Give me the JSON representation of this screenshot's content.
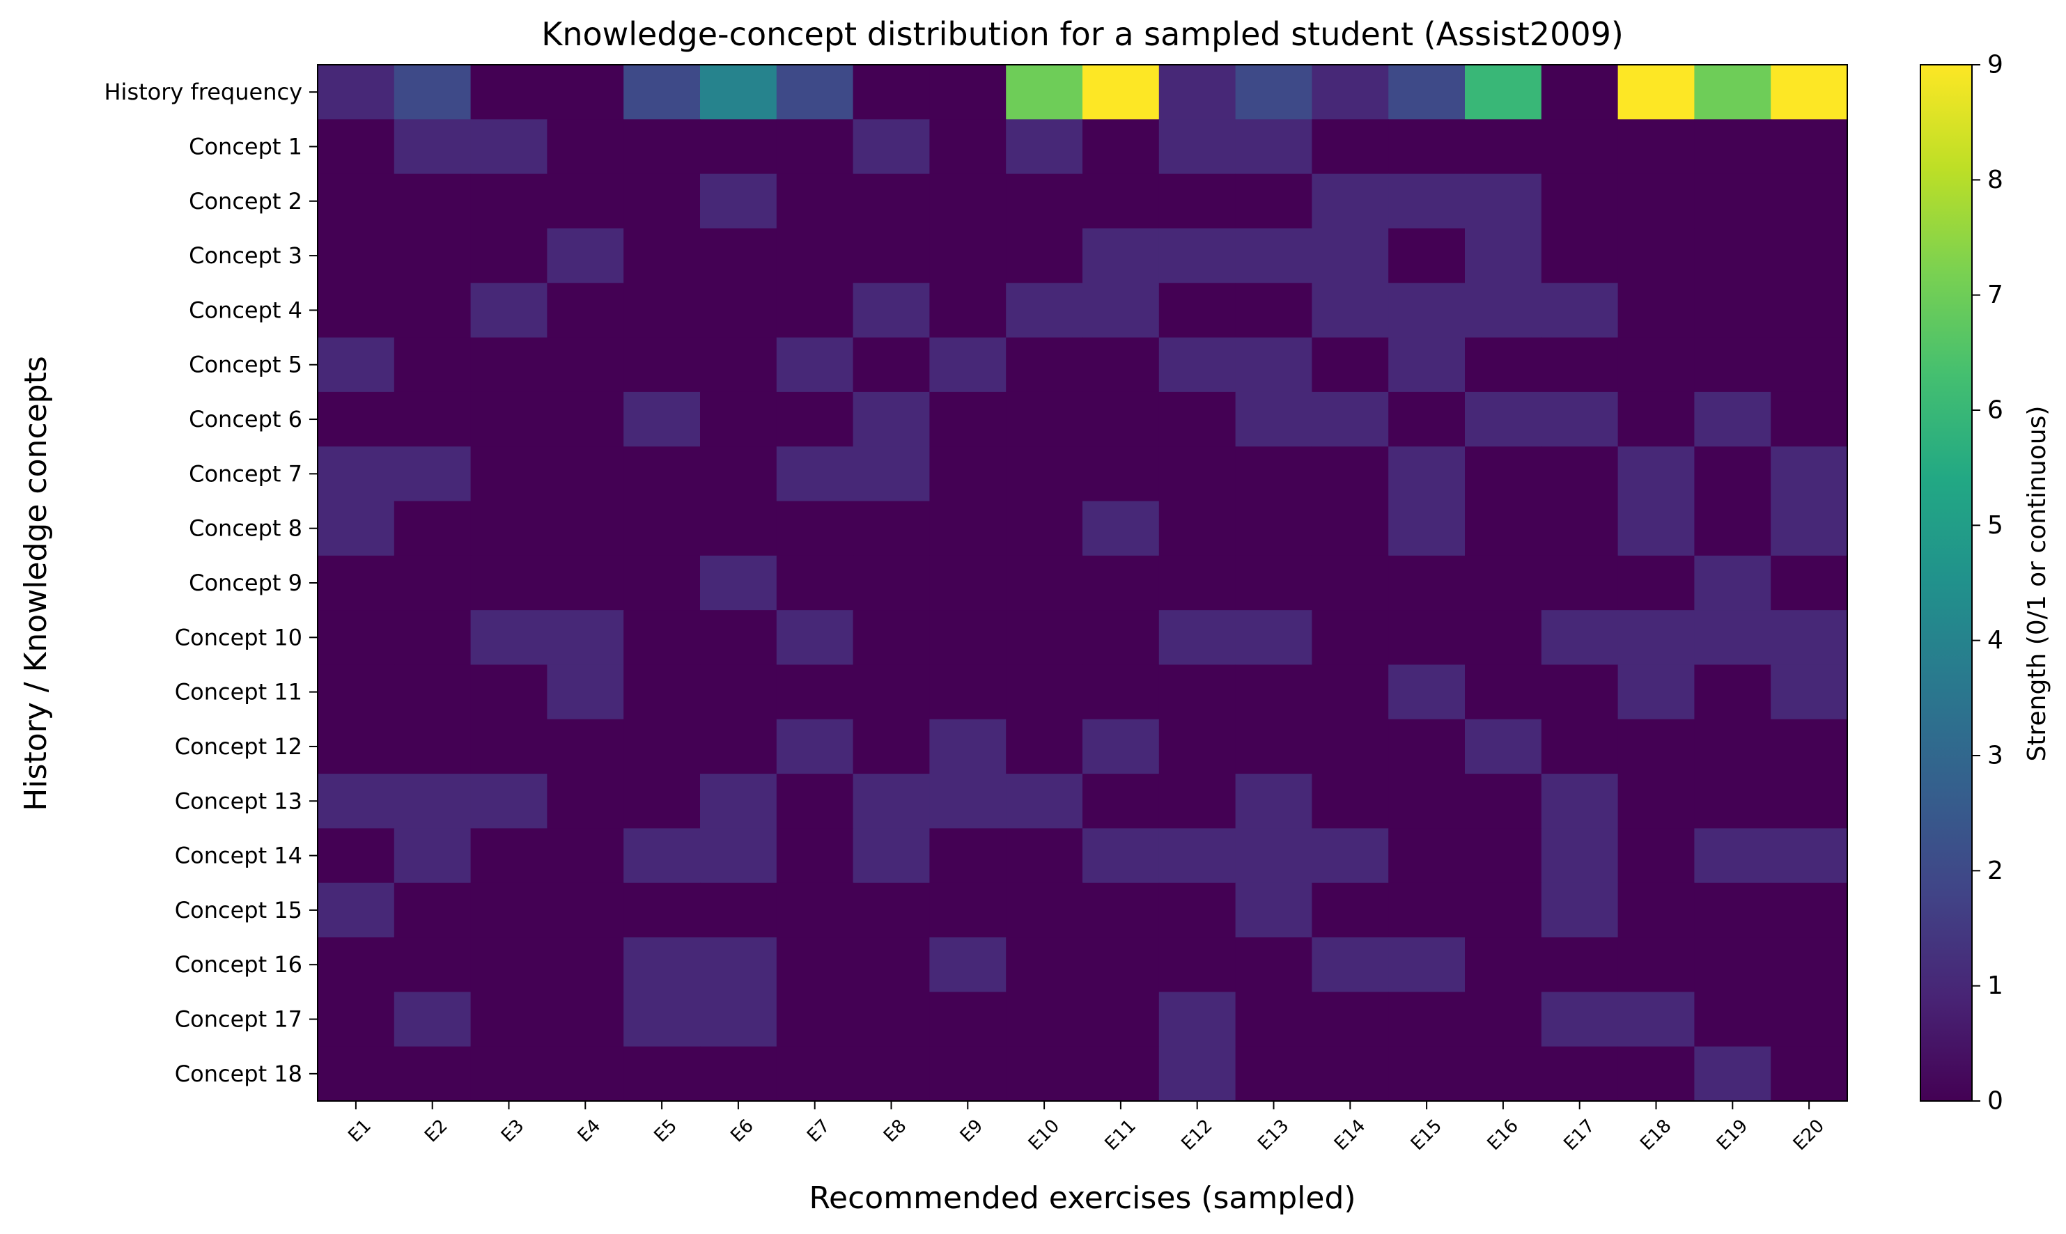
{
  "chart_data": {
    "type": "heatmap",
    "title": "Knowledge-concept distribution for a sampled student (Assist2009)",
    "xlabel": "Recommended exercises (sampled)",
    "ylabel": "History / Knowledge concepts",
    "x_categories": [
      "E1",
      "E2",
      "E3",
      "E4",
      "E5",
      "E6",
      "E7",
      "E8",
      "E9",
      "E10",
      "E11",
      "E12",
      "E13",
      "E14",
      "E15",
      "E16",
      "E17",
      "E18",
      "E19",
      "E20"
    ],
    "y_categories": [
      "History frequency",
      "Concept 1",
      "Concept 2",
      "Concept 3",
      "Concept 4",
      "Concept 5",
      "Concept 6",
      "Concept 7",
      "Concept 8",
      "Concept 9",
      "Concept 10",
      "Concept 11",
      "Concept 12",
      "Concept 13",
      "Concept 14",
      "Concept 15",
      "Concept 16",
      "Concept 17",
      "Concept 18"
    ],
    "values": [
      [
        1,
        2,
        0,
        0,
        2,
        4,
        2,
        0,
        0,
        7,
        9,
        1,
        2,
        1,
        2,
        6,
        0,
        9,
        7,
        9
      ],
      [
        0,
        1,
        1,
        0,
        0,
        0,
        0,
        1,
        0,
        1,
        0,
        1,
        1,
        0,
        0,
        0,
        0,
        0,
        0,
        0
      ],
      [
        0,
        0,
        0,
        0,
        0,
        1,
        0,
        0,
        0,
        0,
        0,
        0,
        0,
        1,
        1,
        1,
        0,
        0,
        0,
        0
      ],
      [
        0,
        0,
        0,
        1,
        0,
        0,
        0,
        0,
        0,
        0,
        1,
        1,
        1,
        1,
        0,
        1,
        0,
        0,
        0,
        0
      ],
      [
        0,
        0,
        1,
        0,
        0,
        0,
        0,
        1,
        0,
        1,
        1,
        0,
        0,
        1,
        1,
        1,
        1,
        0,
        0,
        0
      ],
      [
        1,
        0,
        0,
        0,
        0,
        0,
        1,
        0,
        1,
        0,
        0,
        1,
        1,
        0,
        1,
        0,
        0,
        0,
        0,
        0
      ],
      [
        0,
        0,
        0,
        0,
        1,
        0,
        0,
        1,
        0,
        0,
        0,
        0,
        1,
        1,
        0,
        1,
        1,
        0,
        1,
        0
      ],
      [
        1,
        1,
        0,
        0,
        0,
        0,
        1,
        1,
        0,
        0,
        0,
        0,
        0,
        0,
        1,
        0,
        0,
        1,
        0,
        1
      ],
      [
        1,
        0,
        0,
        0,
        0,
        0,
        0,
        0,
        0,
        0,
        1,
        0,
        0,
        0,
        1,
        0,
        0,
        1,
        0,
        1
      ],
      [
        0,
        0,
        0,
        0,
        0,
        1,
        0,
        0,
        0,
        0,
        0,
        0,
        0,
        0,
        0,
        0,
        0,
        0,
        1,
        0
      ],
      [
        0,
        0,
        1,
        1,
        0,
        0,
        1,
        0,
        0,
        0,
        0,
        1,
        1,
        0,
        0,
        0,
        1,
        1,
        1,
        1
      ],
      [
        0,
        0,
        0,
        1,
        0,
        0,
        0,
        0,
        0,
        0,
        0,
        0,
        0,
        0,
        1,
        0,
        0,
        1,
        0,
        1
      ],
      [
        0,
        0,
        0,
        0,
        0,
        0,
        1,
        0,
        1,
        0,
        1,
        0,
        0,
        0,
        0,
        1,
        0,
        0,
        0,
        0
      ],
      [
        1,
        1,
        1,
        0,
        0,
        1,
        0,
        1,
        1,
        1,
        0,
        0,
        1,
        0,
        0,
        0,
        1,
        0,
        0,
        0
      ],
      [
        0,
        1,
        0,
        0,
        1,
        1,
        0,
        1,
        0,
        0,
        1,
        1,
        1,
        1,
        0,
        0,
        1,
        0,
        1,
        1
      ],
      [
        1,
        0,
        0,
        0,
        0,
        0,
        0,
        0,
        0,
        0,
        0,
        0,
        1,
        0,
        0,
        0,
        1,
        0,
        0,
        0
      ],
      [
        0,
        0,
        0,
        0,
        1,
        1,
        0,
        0,
        1,
        0,
        0,
        0,
        0,
        1,
        1,
        0,
        0,
        0,
        0,
        0
      ],
      [
        0,
        1,
        0,
        0,
        1,
        1,
        0,
        0,
        0,
        0,
        0,
        1,
        0,
        0,
        0,
        0,
        1,
        1,
        0,
        0
      ],
      [
        0,
        0,
        0,
        0,
        0,
        0,
        0,
        0,
        0,
        0,
        0,
        1,
        0,
        0,
        0,
        0,
        0,
        0,
        1,
        0
      ]
    ],
    "colorscale": "viridis",
    "vmin": 0,
    "vmax": 9,
    "colorbar": {
      "label": "Strength (0/1 or continuous)",
      "ticks": [
        "0",
        "1",
        "2",
        "3",
        "4",
        "5",
        "6",
        "7",
        "8",
        "9"
      ]
    }
  }
}
